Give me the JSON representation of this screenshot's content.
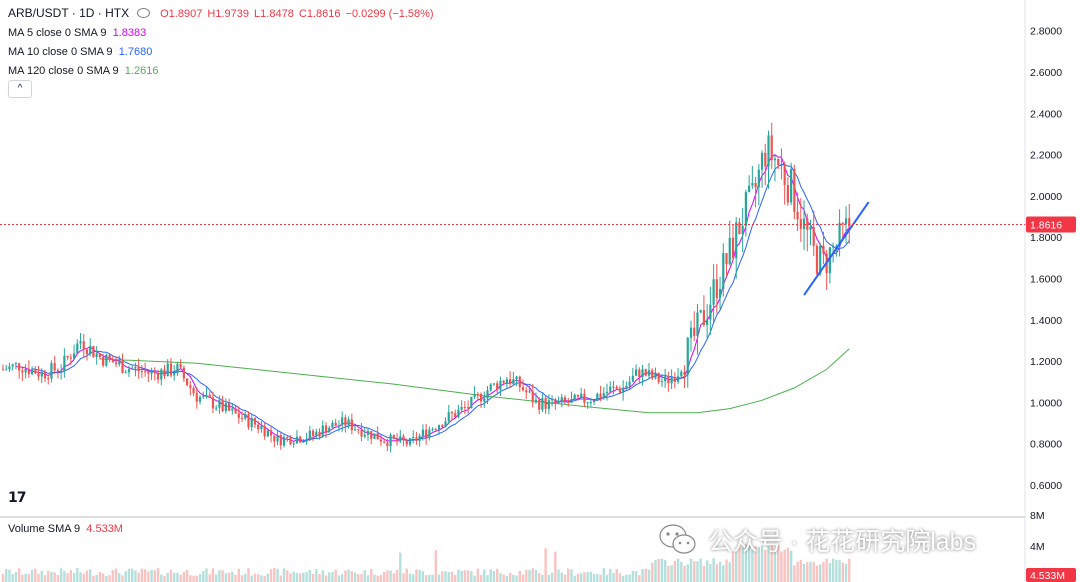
{
  "header": {
    "symbol": "ARB/USDT · 1D · HTX",
    "open": "O1.8907",
    "high": "H1.9739",
    "low": "L1.8478",
    "close": "C1.8616",
    "change": "−0.0299 (−1.58%)"
  },
  "indicators": [
    {
      "label": "MA 5 close 0 SMA 9",
      "value": "1.8383",
      "color": "#d500f9"
    },
    {
      "label": "MA 10 close 0 SMA 9",
      "value": "1.7680",
      "color": "#2962ff"
    },
    {
      "label": "MA 120 close 0 SMA 9",
      "value": "1.2616",
      "color": "#4caf50"
    }
  ],
  "collapse_icon": "chevron-up-icon",
  "volume_legend": {
    "label": "Volume SMA 9",
    "value": "4.533M"
  },
  "tv_logo_text": "17",
  "watermark": "公众号 · 花花研究院labs",
  "colors": {
    "up": "#26a69a",
    "down": "#ef5350",
    "ma5": "#d500f9",
    "ma10": "#2962ff",
    "ma120": "#4caf50",
    "trendline": "#2962ff",
    "price_label": "#f23645"
  },
  "chart_data": {
    "type": "candlestick",
    "price_axis": {
      "ticks": [
        "2.8000",
        "2.6000",
        "2.4000",
        "2.2000",
        "2.0000",
        "1.8000",
        "1.6000",
        "1.4000",
        "1.2000",
        "1.0000",
        "0.8000",
        "0.6000"
      ],
      "range": [
        0.5,
        2.95
      ]
    },
    "volume_axis": {
      "ticks": [
        "8M",
        "4M"
      ]
    },
    "last_price": "1.8616",
    "last_volume": "4.533M",
    "anchors": [
      [
        0,
        1.16
      ],
      [
        5,
        1.18
      ],
      [
        12,
        1.14
      ],
      [
        18,
        1.17
      ],
      [
        24,
        1.3
      ],
      [
        30,
        1.22
      ],
      [
        38,
        1.17
      ],
      [
        46,
        1.14
      ],
      [
        54,
        1.16
      ],
      [
        60,
        1.03
      ],
      [
        66,
        0.99
      ],
      [
        72,
        0.94
      ],
      [
        80,
        0.88
      ],
      [
        85,
        0.82
      ],
      [
        90,
        0.83
      ],
      [
        96,
        0.84
      ],
      [
        100,
        0.88
      ],
      [
        106,
        0.9
      ],
      [
        112,
        0.86
      ],
      [
        118,
        0.82
      ],
      [
        126,
        0.8
      ],
      [
        132,
        0.87
      ],
      [
        138,
        0.93
      ],
      [
        144,
        0.98
      ],
      [
        150,
        1.06
      ],
      [
        156,
        1.12
      ],
      [
        160,
        1.08
      ],
      [
        165,
        1.0
      ],
      [
        170,
        0.99
      ],
      [
        176,
        1.0
      ],
      [
        182,
        1.02
      ],
      [
        188,
        1.06
      ],
      [
        192,
        1.07
      ],
      [
        197,
        1.15
      ],
      [
        201,
        1.12
      ],
      [
        205,
        1.1
      ],
      [
        209,
        1.15
      ],
      [
        213,
        1.28
      ],
      [
        217,
        1.42
      ],
      [
        221,
        1.58
      ],
      [
        225,
        1.72
      ],
      [
        229,
        1.9
      ],
      [
        232,
        1.98
      ],
      [
        236,
        2.22
      ],
      [
        239,
        2.18
      ],
      [
        242,
        2.1
      ],
      [
        245,
        2.0
      ],
      [
        248,
        1.85
      ],
      [
        251,
        1.72
      ],
      [
        254,
        1.67
      ],
      [
        256,
        1.72
      ],
      [
        259,
        1.78
      ],
      [
        262,
        1.86
      ]
    ],
    "ma120_line": [
      [
        30,
        1.21
      ],
      [
        60,
        1.19
      ],
      [
        90,
        1.14
      ],
      [
        120,
        1.09
      ],
      [
        150,
        1.03
      ],
      [
        180,
        0.98
      ],
      [
        200,
        0.95
      ],
      [
        215,
        0.95
      ],
      [
        225,
        0.97
      ],
      [
        235,
        1.01
      ],
      [
        245,
        1.07
      ],
      [
        255,
        1.16
      ],
      [
        262,
        1.26
      ]
    ],
    "trendline": [
      [
        248,
        1.52
      ],
      [
        268,
        1.97
      ]
    ]
  }
}
